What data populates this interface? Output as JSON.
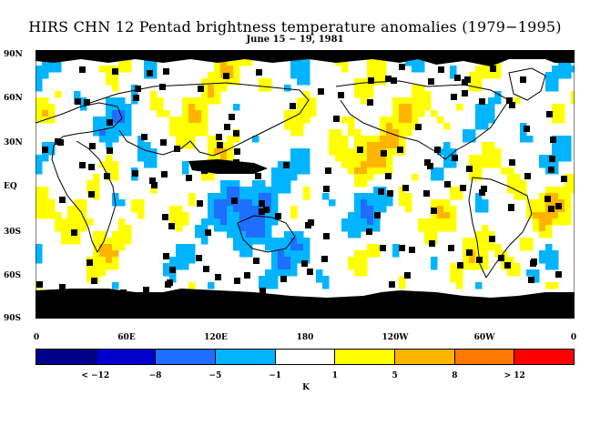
{
  "title": "HIRS CHN 12 Pentad brightness temperature anomalies (1979−1995)",
  "subtitle": "June 15 − 19, 1981",
  "lat_labels": [
    "90N",
    "60N",
    "30N",
    "EQ",
    "30S",
    "60S",
    "90S"
  ],
  "lon_labels": [
    "0",
    "60E",
    "120E",
    "180",
    "120W",
    "60W",
    "0"
  ],
  "colorbar": {
    "colors": [
      "#00008b",
      "#0000cd",
      "#1e6eff",
      "#00b4ff",
      "#ffffff",
      "#ffff00",
      "#ffb400",
      "#ff7800",
      "#ff0000"
    ],
    "labels": [
      "< −12",
      "−8",
      "−5",
      "−1",
      "1",
      "5",
      "8",
      "> 12"
    ],
    "unit": "K"
  },
  "map": {
    "colors": {
      "missing": "#000000",
      "cold_strong": "#1e6eff",
      "cold": "#00b4ff",
      "warm": "#ffff00",
      "warm_strong": "#ffb400",
      "coast": "#000000"
    }
  }
}
